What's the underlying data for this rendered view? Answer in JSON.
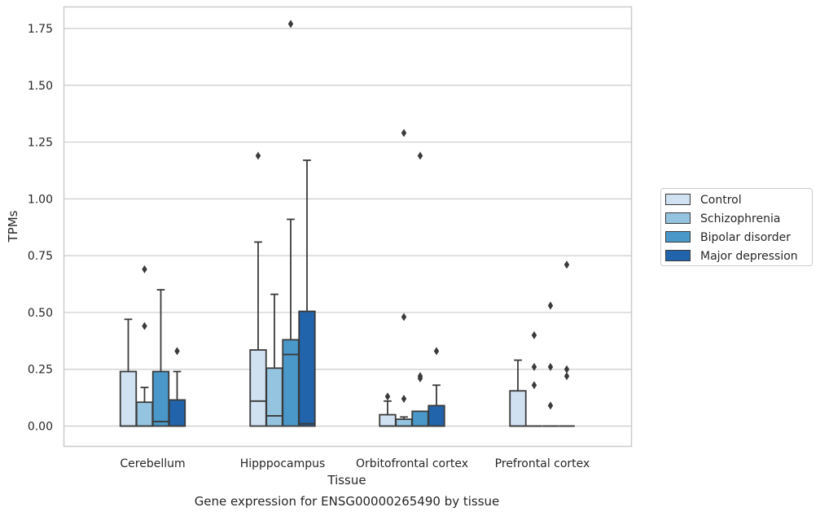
{
  "chart_data": {
    "type": "box",
    "title": "Gene expression for ENSG00000265490 by tissue",
    "xlabel": "Tissue",
    "ylabel": "TPMs",
    "ylim": [
      -0.085,
      1.86
    ],
    "yticks": [
      0.0,
      0.25,
      0.5,
      0.75,
      1.0,
      1.25,
      1.5,
      1.75
    ],
    "ytick_labels": [
      "0.00",
      "0.25",
      "0.50",
      "0.75",
      "1.00",
      "1.25",
      "1.50",
      "1.75"
    ],
    "grid": "horizontal",
    "legend_position": "right",
    "categories": [
      "Cerebellum",
      "Hipppocampus",
      "Orbitofrontal cortex",
      "Prefrontal cortex"
    ],
    "series": [
      {
        "name": "Control",
        "color": "#d0e1f2",
        "boxes": [
          {
            "q1": 0.0,
            "median": 0.0,
            "q3": 0.24,
            "whisker_low": 0.0,
            "whisker_high": 0.47,
            "outliers": []
          },
          {
            "q1": 0.0,
            "median": 0.11,
            "q3": 0.335,
            "whisker_low": 0.0,
            "whisker_high": 0.81,
            "outliers": [
              1.19
            ]
          },
          {
            "q1": 0.0,
            "median": 0.0,
            "q3": 0.05,
            "whisker_low": 0.0,
            "whisker_high": 0.11,
            "outliers": [
              0.13
            ]
          },
          {
            "q1": 0.0,
            "median": 0.0,
            "q3": 0.155,
            "whisker_low": 0.0,
            "whisker_high": 0.29,
            "outliers": []
          }
        ]
      },
      {
        "name": "Schizophrenia",
        "color": "#94c4df",
        "boxes": [
          {
            "q1": 0.0,
            "median": 0.0,
            "q3": 0.105,
            "whisker_low": 0.0,
            "whisker_high": 0.17,
            "outliers": [
              0.44,
              0.69
            ]
          },
          {
            "q1": 0.0,
            "median": 0.045,
            "q3": 0.255,
            "whisker_low": 0.0,
            "whisker_high": 0.58,
            "outliers": []
          },
          {
            "q1": 0.0,
            "median": 0.0,
            "q3": 0.03,
            "whisker_low": 0.0,
            "whisker_high": 0.04,
            "outliers": [
              0.12,
              0.48,
              1.29
            ]
          },
          {
            "q1": 0.0,
            "median": 0.0,
            "q3": 0.0,
            "whisker_low": 0.0,
            "whisker_high": 0.0,
            "outliers": [
              0.18,
              0.26,
              0.4
            ]
          }
        ]
      },
      {
        "name": "Bipolar disorder",
        "color": "#4a98c9",
        "boxes": [
          {
            "q1": 0.0,
            "median": 0.02,
            "q3": 0.24,
            "whisker_low": 0.0,
            "whisker_high": 0.6,
            "outliers": []
          },
          {
            "q1": 0.0,
            "median": 0.315,
            "q3": 0.38,
            "whisker_low": 0.0,
            "whisker_high": 0.91,
            "outliers": [
              1.77
            ]
          },
          {
            "q1": 0.0,
            "median": 0.0,
            "q3": 0.065,
            "whisker_low": 0.0,
            "whisker_high": 0.065,
            "outliers": [
              0.21,
              0.22,
              1.19
            ]
          },
          {
            "q1": 0.0,
            "median": 0.0,
            "q3": 0.0,
            "whisker_low": 0.0,
            "whisker_high": 0.0,
            "outliers": [
              0.09,
              0.26,
              0.53
            ]
          }
        ]
      },
      {
        "name": "Major depression",
        "color": "#2164ab",
        "boxes": [
          {
            "q1": 0.0,
            "median": 0.0,
            "q3": 0.115,
            "whisker_low": 0.0,
            "whisker_high": 0.24,
            "outliers": [
              0.33
            ]
          },
          {
            "q1": 0.0,
            "median": 0.01,
            "q3": 0.505,
            "whisker_low": 0.0,
            "whisker_high": 1.17,
            "outliers": []
          },
          {
            "q1": 0.0,
            "median": 0.0,
            "q3": 0.09,
            "whisker_low": 0.0,
            "whisker_high": 0.18,
            "outliers": [
              0.33
            ]
          },
          {
            "q1": 0.0,
            "median": 0.0,
            "q3": 0.0,
            "whisker_low": 0.0,
            "whisker_high": 0.0,
            "outliers": [
              0.22,
              0.25,
              0.71
            ]
          }
        ]
      }
    ]
  }
}
